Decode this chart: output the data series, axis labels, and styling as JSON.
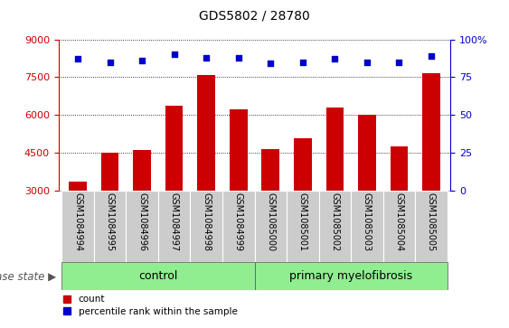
{
  "title": "GDS5802 / 28780",
  "samples": [
    "GSM1084994",
    "GSM1084995",
    "GSM1084996",
    "GSM1084997",
    "GSM1084998",
    "GSM1084999",
    "GSM1085000",
    "GSM1085001",
    "GSM1085002",
    "GSM1085003",
    "GSM1085004",
    "GSM1085005"
  ],
  "counts": [
    3350,
    4500,
    4600,
    6350,
    7600,
    6200,
    4650,
    5050,
    6300,
    6000,
    4750,
    7650
  ],
  "percentiles": [
    87,
    85,
    86,
    90,
    88,
    88,
    84,
    85,
    87,
    85,
    85,
    89
  ],
  "ylim": [
    3000,
    9000
  ],
  "yticks_left": [
    3000,
    4500,
    6000,
    7500,
    9000
  ],
  "yticks_right": [
    0,
    25,
    50,
    75,
    100
  ],
  "bar_color": "#cc0000",
  "dot_color": "#0000cc",
  "n_control": 6,
  "n_myelofibrosis": 6,
  "control_label": "control",
  "disease_label": "primary myelofibrosis",
  "disease_state_text": "disease state",
  "legend_count_label": "count",
  "legend_percentile_label": "percentile rank within the sample",
  "green_bg": "#90EE90",
  "grey_bg": "#cccccc",
  "left_axis_color": "#cc0000",
  "right_axis_color": "#0000cc",
  "title_fontsize": 10,
  "tick_fontsize": 8,
  "label_fontsize": 7,
  "disease_fontsize": 8.5,
  "legend_fontsize": 7.5
}
